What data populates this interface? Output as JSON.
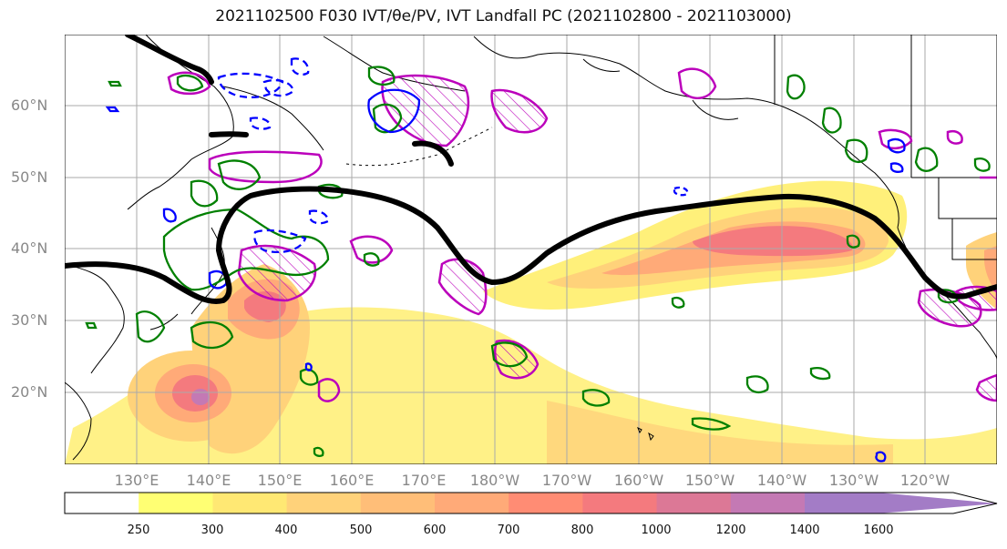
{
  "title": "2021102500 F030 IVT/θe/PV, IVT Landfall PC (2021102800 - 2021103000)",
  "lat_labels": [
    "60°N",
    "50°N",
    "40°N",
    "30°N",
    "20°N"
  ],
  "lon_labels": [
    "130°E",
    "140°E",
    "150°E",
    "160°E",
    "170°E",
    "180°W",
    "170°W",
    "160°W",
    "150°W",
    "140°W",
    "130°W",
    "120°W"
  ],
  "colorbar": {
    "levels": [
      250,
      300,
      400,
      500,
      600,
      700,
      800,
      1000,
      1200,
      1400,
      1600
    ],
    "level_labels": [
      "250",
      "300",
      "400",
      "500",
      "600",
      "700",
      "800",
      "1000",
      "1200",
      "1400",
      "1600"
    ],
    "colors": [
      "#ffffff",
      "#ffff73",
      "#ffe873",
      "#ffd27a",
      "#ffbe78",
      "#ffaa78",
      "#ff8c74",
      "#f47a7e",
      "#dc7896",
      "#c479b4",
      "#a37cc6"
    ]
  },
  "contour_colors": {
    "theta_e_front": "#000000",
    "pv_positive": "#008000",
    "pv_negative": "#0000ff",
    "landfall_pc": "#bb00bb"
  }
}
